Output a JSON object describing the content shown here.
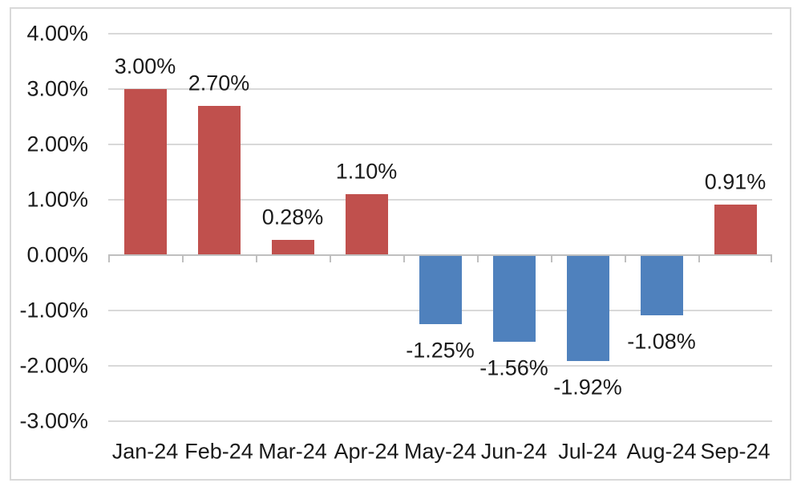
{
  "chart_data": {
    "type": "bar",
    "title": "",
    "xlabel": "",
    "ylabel": "",
    "categories": [
      "Jan-24",
      "Feb-24",
      "Mar-24",
      "Apr-24",
      "May-24",
      "Jun-24",
      "Jul-24",
      "Aug-24",
      "Sep-24"
    ],
    "values": [
      3.0,
      2.7,
      0.28,
      1.1,
      -1.25,
      -1.56,
      -1.92,
      -1.08,
      0.91
    ],
    "value_labels": [
      "3.00%",
      "2.70%",
      "0.28%",
      "1.10%",
      "-1.25%",
      "-1.56%",
      "-1.92%",
      "-1.08%",
      "0.91%"
    ],
    "y_tick_labels": [
      "4.00%",
      "3.00%",
      "2.00%",
      "1.00%",
      "0.00%",
      "-1.00%",
      "-2.00%",
      "-3.00%"
    ],
    "y_tick_values": [
      4,
      3,
      2,
      1,
      0,
      -1,
      -2,
      -3
    ],
    "ylim": [
      -3,
      4
    ],
    "grid": true,
    "legend": false,
    "colors": {
      "positive_bar": "#c0504d",
      "negative_bar": "#4f81bd",
      "gridline": "#d9d9d9",
      "axis_line": "#bfbfbf",
      "text": "#1a1a1a",
      "frame_border": "#d9d9d9",
      "background": "#ffffff"
    }
  }
}
